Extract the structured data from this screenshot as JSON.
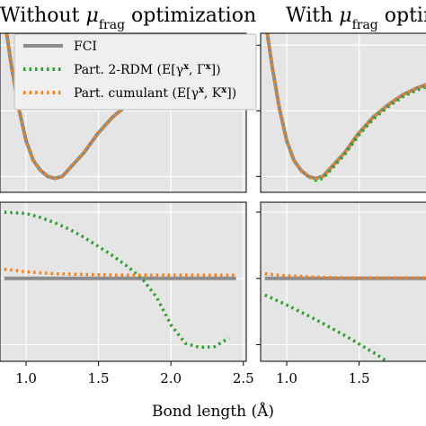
{
  "chart_data": {
    "type": "line",
    "xlabel": "Bond length (Å)",
    "colors": {
      "fci": "#8c8c8c",
      "rdm": "#2ca02c",
      "cumulant": "#ff7f0e"
    },
    "legend": {
      "placement": "top-right of left panel",
      "entries": [
        {
          "key": "fci",
          "label": "FCI",
          "style": "solid"
        },
        {
          "key": "rdm",
          "label": "Part. 2-RDM (E[γ^x, Γ^x])",
          "style": "dotted"
        },
        {
          "key": "cumulant",
          "label": "Part. cumulant (E[γ^x, K^x])",
          "style": "dotted"
        }
      ]
    },
    "panels": [
      {
        "id": "left",
        "title": "Without μfrag optimization",
        "xticks": [
          1.0,
          1.5,
          2.0,
          2.5
        ],
        "xtick_labels": [
          "1.0",
          "1.5",
          "2.0",
          "2.5"
        ],
        "top": {
          "series": [
            {
              "key": "fci",
              "x": [
                0.85,
                0.9,
                0.95,
                1.0,
                1.05,
                1.1,
                1.15,
                1.2,
                1.25,
                1.3,
                1.4,
                1.5,
                1.6,
                1.7,
                1.8,
                1.9,
                2.0,
                2.1,
                2.2,
                2.3,
                2.4,
                2.45
              ],
              "y": [
                0.8,
                0.55,
                0.34,
                0.18,
                0.08,
                0.03,
                0.0,
                -0.01,
                0.0,
                0.04,
                0.12,
                0.22,
                0.3,
                0.36,
                0.41,
                0.445,
                0.47,
                0.485,
                0.495,
                0.5,
                0.505,
                0.505
              ]
            },
            {
              "key": "rdm",
              "x": [
                0.85,
                0.9,
                0.95,
                1.0,
                1.05,
                1.1,
                1.15,
                1.2,
                1.25,
                1.3,
                1.4,
                1.5,
                1.6,
                1.7,
                1.8,
                1.9,
                2.0,
                2.1,
                2.2,
                2.3,
                2.4,
                2.45
              ],
              "y": [
                0.8,
                0.55,
                0.34,
                0.18,
                0.08,
                0.03,
                0.0,
                -0.01,
                0.0,
                0.04,
                0.12,
                0.22,
                0.3,
                0.36,
                0.4,
                0.425,
                0.44,
                0.45,
                0.455,
                0.46,
                0.465,
                0.465
              ]
            },
            {
              "key": "cumulant",
              "x": [
                0.85,
                0.9,
                0.95,
                1.0,
                1.05,
                1.1,
                1.15,
                1.2,
                1.25,
                1.3,
                1.4,
                1.5,
                1.6,
                1.7,
                1.8,
                1.9,
                2.0,
                2.1,
                2.2,
                2.3,
                2.4,
                2.45
              ],
              "y": [
                0.8,
                0.55,
                0.34,
                0.18,
                0.08,
                0.03,
                0.0,
                -0.01,
                0.0,
                0.04,
                0.12,
                0.22,
                0.3,
                0.36,
                0.41,
                0.445,
                0.47,
                0.485,
                0.495,
                0.5,
                0.505,
                0.505
              ]
            }
          ]
        },
        "bottom": {
          "series": [
            {
              "key": "fci",
              "x": [
                0.85,
                2.45
              ],
              "y": [
                0.0,
                0.0
              ]
            },
            {
              "key": "rdm",
              "x": [
                0.85,
                1.0,
                1.1,
                1.2,
                1.3,
                1.4,
                1.5,
                1.6,
                1.7,
                1.8,
                1.9,
                2.0,
                2.1,
                2.2,
                2.3,
                2.4
              ],
              "y": [
                1.0,
                0.98,
                0.92,
                0.84,
                0.74,
                0.62,
                0.48,
                0.34,
                0.18,
                0.0,
                -0.28,
                -0.7,
                -0.98,
                -1.04,
                -1.03,
                -0.9
              ]
            },
            {
              "key": "cumulant",
              "x": [
                0.85,
                1.0,
                1.2,
                1.4,
                1.6,
                1.8,
                2.0,
                2.2,
                2.45
              ],
              "y": [
                0.14,
                0.1,
                0.07,
                0.06,
                0.05,
                0.05,
                0.05,
                0.05,
                0.05
              ]
            }
          ]
        }
      },
      {
        "id": "right",
        "title": "With μfrag optimization",
        "xticks": [
          1.0,
          1.5
        ],
        "xtick_labels": [
          "1.0",
          "1.5"
        ],
        "top": {
          "series": [
            {
              "key": "fci",
              "x": [
                0.85,
                0.9,
                0.95,
                1.0,
                1.05,
                1.1,
                1.15,
                1.2,
                1.25,
                1.3,
                1.4,
                1.5,
                1.6,
                1.7,
                1.8,
                1.9,
                2.0
              ],
              "y": [
                0.8,
                0.55,
                0.34,
                0.18,
                0.08,
                0.03,
                0.0,
                -0.01,
                0.0,
                0.04,
                0.12,
                0.22,
                0.3,
                0.36,
                0.41,
                0.445,
                0.47
              ]
            },
            {
              "key": "rdm",
              "x": [
                0.85,
                0.9,
                0.95,
                1.0,
                1.05,
                1.1,
                1.15,
                1.2,
                1.25,
                1.3,
                1.4,
                1.5,
                1.6,
                1.7,
                1.8,
                1.9,
                2.0
              ],
              "y": [
                0.8,
                0.55,
                0.34,
                0.18,
                0.08,
                0.03,
                0.0,
                -0.02,
                -0.01,
                0.03,
                0.11,
                0.21,
                0.29,
                0.35,
                0.4,
                0.435,
                0.46
              ]
            },
            {
              "key": "cumulant",
              "x": [
                0.85,
                0.9,
                0.95,
                1.0,
                1.05,
                1.1,
                1.15,
                1.2,
                1.25,
                1.3,
                1.4,
                1.5,
                1.6,
                1.7,
                1.8,
                1.9,
                2.0
              ],
              "y": [
                0.8,
                0.55,
                0.34,
                0.18,
                0.08,
                0.03,
                0.0,
                -0.01,
                0.0,
                0.04,
                0.12,
                0.22,
                0.3,
                0.36,
                0.41,
                0.445,
                0.47
              ]
            }
          ]
        },
        "bottom": {
          "series": [
            {
              "key": "fci",
              "x": [
                0.85,
                2.0
              ],
              "y": [
                0.0,
                0.0
              ]
            },
            {
              "key": "rdm",
              "x": [
                0.85,
                1.0,
                1.2,
                1.4,
                1.6,
                1.8,
                2.0
              ],
              "y": [
                -0.25,
                -0.4,
                -0.62,
                -0.86,
                -1.12,
                -1.4,
                -1.7
              ]
            },
            {
              "key": "cumulant",
              "x": [
                0.85,
                1.0,
                1.2,
                1.4,
                1.6,
                1.8,
                2.0
              ],
              "y": [
                0.07,
                0.04,
                0.02,
                0.01,
                0.01,
                0.01,
                0.01
              ]
            }
          ]
        }
      }
    ]
  }
}
